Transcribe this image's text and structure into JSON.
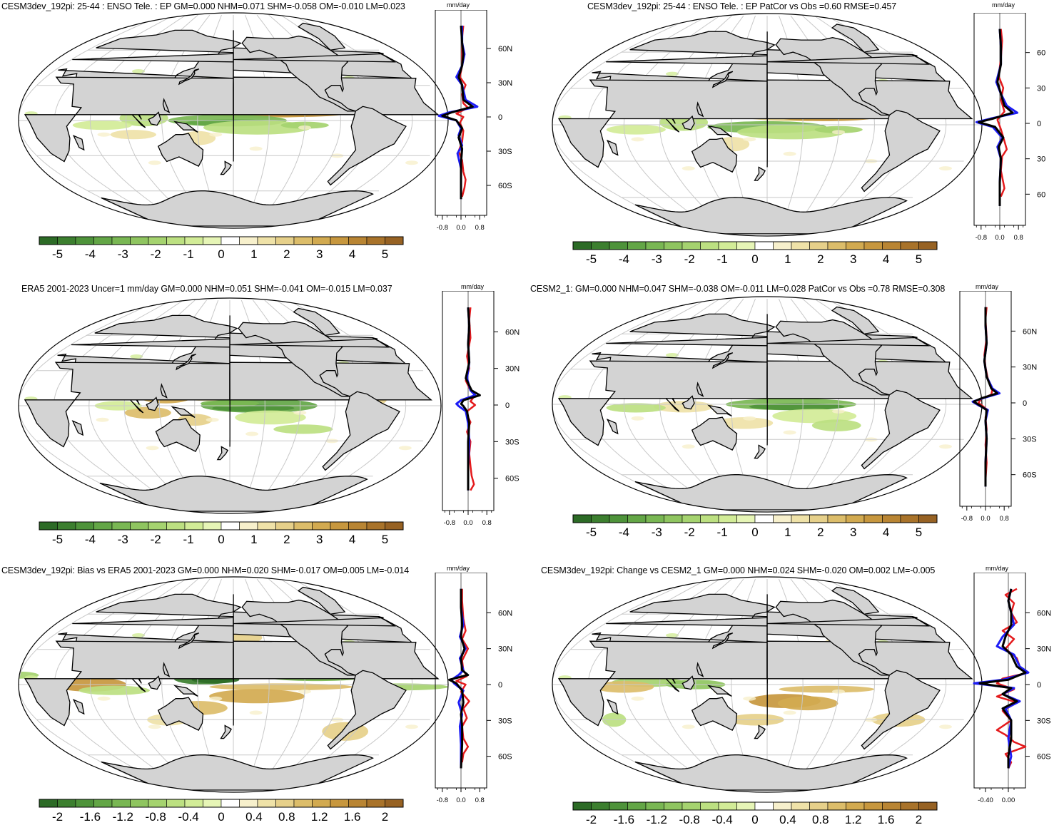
{
  "figure_title": "ENSO teleconnection precipitation maps with zonal-mean profiles",
  "colors": {
    "green_scale": [
      "#2c6b26",
      "#3c7f2f",
      "#4e933a",
      "#63a646",
      "#79b753",
      "#8fc560",
      "#a5d36f",
      "#bce081",
      "#d2ec97",
      "#e6f5b6",
      "#ffffff",
      "#f7f0cc",
      "#efe2a8",
      "#e6d08a",
      "#dcbd6a",
      "#d2aa50",
      "#c7973e",
      "#b98533",
      "#a9732a",
      "#976223"
    ],
    "land": "#d3d3d3",
    "red_line": "#e41a1c",
    "blue_line": "#1d1df5",
    "black_line": "#000000"
  },
  "panels": [
    {
      "title": "CESM3dev_192pi: 25-44 : ENSO Tele. : EP GM=0.000 NHM=0.071 SHM=-0.058 OM=-0.010 LM=0.023",
      "unit": "mm/day",
      "lat_ticks": [
        "60N",
        "30N",
        "0",
        "30S",
        "60S"
      ],
      "profile_ticks": [
        "-0.8",
        "0.0",
        "0.8"
      ],
      "colorbar_labels": [
        "-5",
        "-4",
        "-3",
        "-2",
        "-1",
        "0",
        "1",
        "2",
        "3",
        "4",
        "5"
      ]
    },
    {
      "title": "CESM3dev_192pi: 25-44 : ENSO Tele. : EP PatCor vs Obs =0.60 RMSE=0.457",
      "unit": "mm/day",
      "lat_ticks": [
        "60",
        "30",
        "0",
        "30",
        "60"
      ],
      "profile_ticks": [
        "-0.8",
        "0.0",
        "0.8"
      ],
      "colorbar_labels": [
        "-5",
        "-4",
        "-3",
        "-2",
        "-1",
        "0",
        "1",
        "2",
        "3",
        "4",
        "5"
      ]
    },
    {
      "title": "ERA5 2001-2023 Uncer=1 mm/day GM=0.000 NHM=0.051 SHM=-0.041 OM=-0.015 LM=0.037",
      "unit": "mm/day",
      "lat_ticks": [
        "60N",
        "30N",
        "0",
        "30S",
        "60S"
      ],
      "profile_ticks": [
        "-0.8",
        "0.0",
        "0.8"
      ],
      "colorbar_labels": [
        "-5",
        "-4",
        "-3",
        "-2",
        "-1",
        "0",
        "1",
        "2",
        "3",
        "4",
        "5"
      ]
    },
    {
      "title": "CESM2_1: GM=0.000 NHM=0.047 SHM=-0.038 OM=-0.011 LM=0.028 PatCor vs Obs =0.78 RMSE=0.308",
      "unit": "mm/day",
      "lat_ticks": [
        "60N",
        "30N",
        "0",
        "30S",
        "60S"
      ],
      "profile_ticks": [
        "-0.8",
        "0.0",
        "0.8"
      ],
      "colorbar_labels": [
        "-5",
        "-4",
        "-3",
        "-2",
        "-1",
        "0",
        "1",
        "2",
        "3",
        "4",
        "5"
      ]
    },
    {
      "title": "CESM3dev_192pi: Bias vs ERA5 2001-2023 GM=0.000 NHM=0.020 SHM=-0.017 OM=0.005 LM=-0.014",
      "unit": "mm/day",
      "lat_ticks": [
        "60N",
        "30N",
        "0",
        "30S",
        "60S"
      ],
      "profile_ticks": [
        "-0.8",
        "0.0",
        "0.8"
      ],
      "colorbar_labels": [
        "-2",
        "-1.6",
        "-1.2",
        "-0.8",
        "-0.4",
        "0",
        "0.4",
        "0.8",
        "1.2",
        "1.6",
        "2"
      ]
    },
    {
      "title": "CESM3dev_192pi: Change vs CESM2_1 GM=0.000 NHM=0.024 SHM=-0.020 OM=0.002 LM=-0.005",
      "unit": "mm/day",
      "lat_ticks": [
        "60N",
        "30N",
        "0",
        "30S",
        "60S"
      ],
      "profile_ticks": [
        "-0.40",
        "0.00"
      ],
      "colorbar_labels": [
        "-2",
        "-1.6",
        "-1.2",
        "-0.8",
        "-0.4",
        "0",
        "0.4",
        "0.8",
        "1.2",
        "1.6",
        "2"
      ]
    }
  ]
}
